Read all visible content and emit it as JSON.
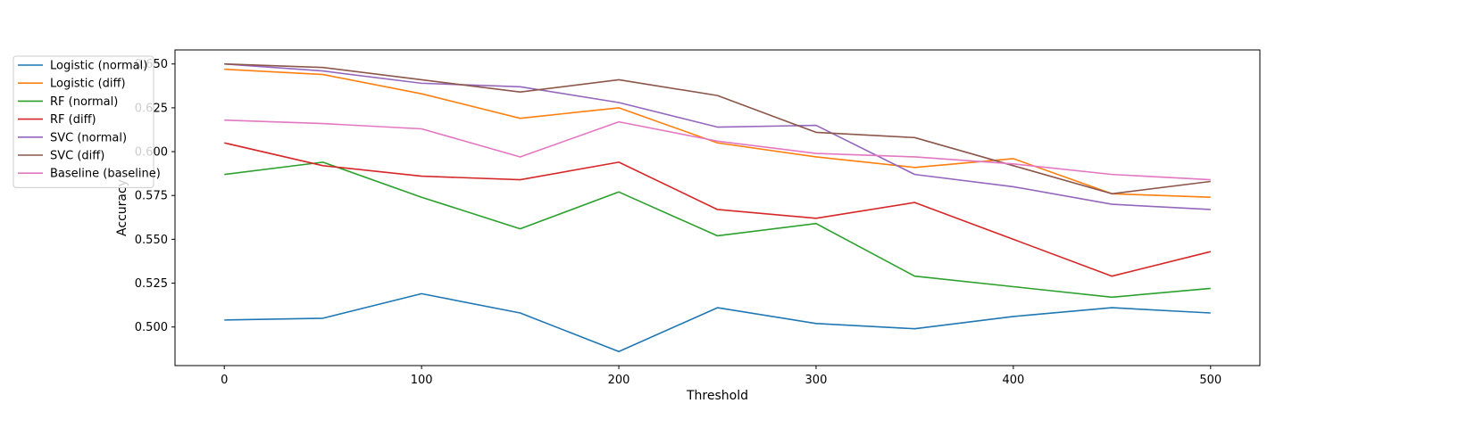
{
  "chart_data": {
    "type": "line",
    "title": "",
    "xlabel": "Threshold",
    "ylabel": "Accuracy",
    "xlim": [
      -25,
      525
    ],
    "ylim": [
      0.478,
      0.658
    ],
    "x_ticks": [
      0,
      100,
      200,
      300,
      400,
      500
    ],
    "y_ticks": [
      0.5,
      0.525,
      0.55,
      0.575,
      0.6,
      0.625,
      0.65
    ],
    "x_tick_labels": [
      "0",
      "100",
      "200",
      "300",
      "400",
      "500"
    ],
    "y_tick_labels": [
      "0.500",
      "0.525",
      "0.550",
      "0.575",
      "0.600",
      "0.625",
      "0.650"
    ],
    "grid": false,
    "legend_position": "upper-left-outside",
    "x": [
      0,
      50,
      100,
      150,
      200,
      250,
      300,
      350,
      400,
      450,
      500
    ],
    "series": [
      {
        "name": "Logistic (normal)",
        "color": "#1f77b4",
        "values": [
          0.504,
          0.505,
          0.519,
          0.508,
          0.486,
          0.511,
          0.502,
          0.499,
          0.506,
          0.511,
          0.508
        ]
      },
      {
        "name": "Logistic (diff)",
        "color": "#ff7f0e",
        "values": [
          0.647,
          0.644,
          0.633,
          0.619,
          0.625,
          0.605,
          0.597,
          0.591,
          0.596,
          0.576,
          0.574
        ]
      },
      {
        "name": "RF (normal)",
        "color": "#2ca02c",
        "values": [
          0.587,
          0.594,
          0.574,
          0.556,
          0.577,
          0.552,
          0.559,
          0.529,
          0.523,
          0.517,
          0.522
        ]
      },
      {
        "name": "RF (diff)",
        "color": "#d62728",
        "values": [
          0.605,
          0.592,
          0.586,
          0.584,
          0.594,
          0.567,
          0.562,
          0.571,
          0.55,
          0.529,
          0.543
        ]
      },
      {
        "name": "SVC (normal)",
        "color": "#9467bd",
        "values": [
          0.65,
          0.646,
          0.639,
          0.637,
          0.628,
          0.614,
          0.615,
          0.587,
          0.58,
          0.57,
          0.567
        ]
      },
      {
        "name": "SVC (diff)",
        "color": "#8c564b",
        "values": [
          0.65,
          0.648,
          0.641,
          0.634,
          0.641,
          0.632,
          0.611,
          0.608,
          0.592,
          0.576,
          0.583
        ]
      },
      {
        "name": "Baseline (baseline)",
        "color": "#e377c2",
        "values": [
          0.618,
          0.616,
          0.613,
          0.597,
          0.617,
          0.606,
          0.599,
          0.597,
          0.593,
          0.587,
          0.584
        ]
      }
    ]
  }
}
